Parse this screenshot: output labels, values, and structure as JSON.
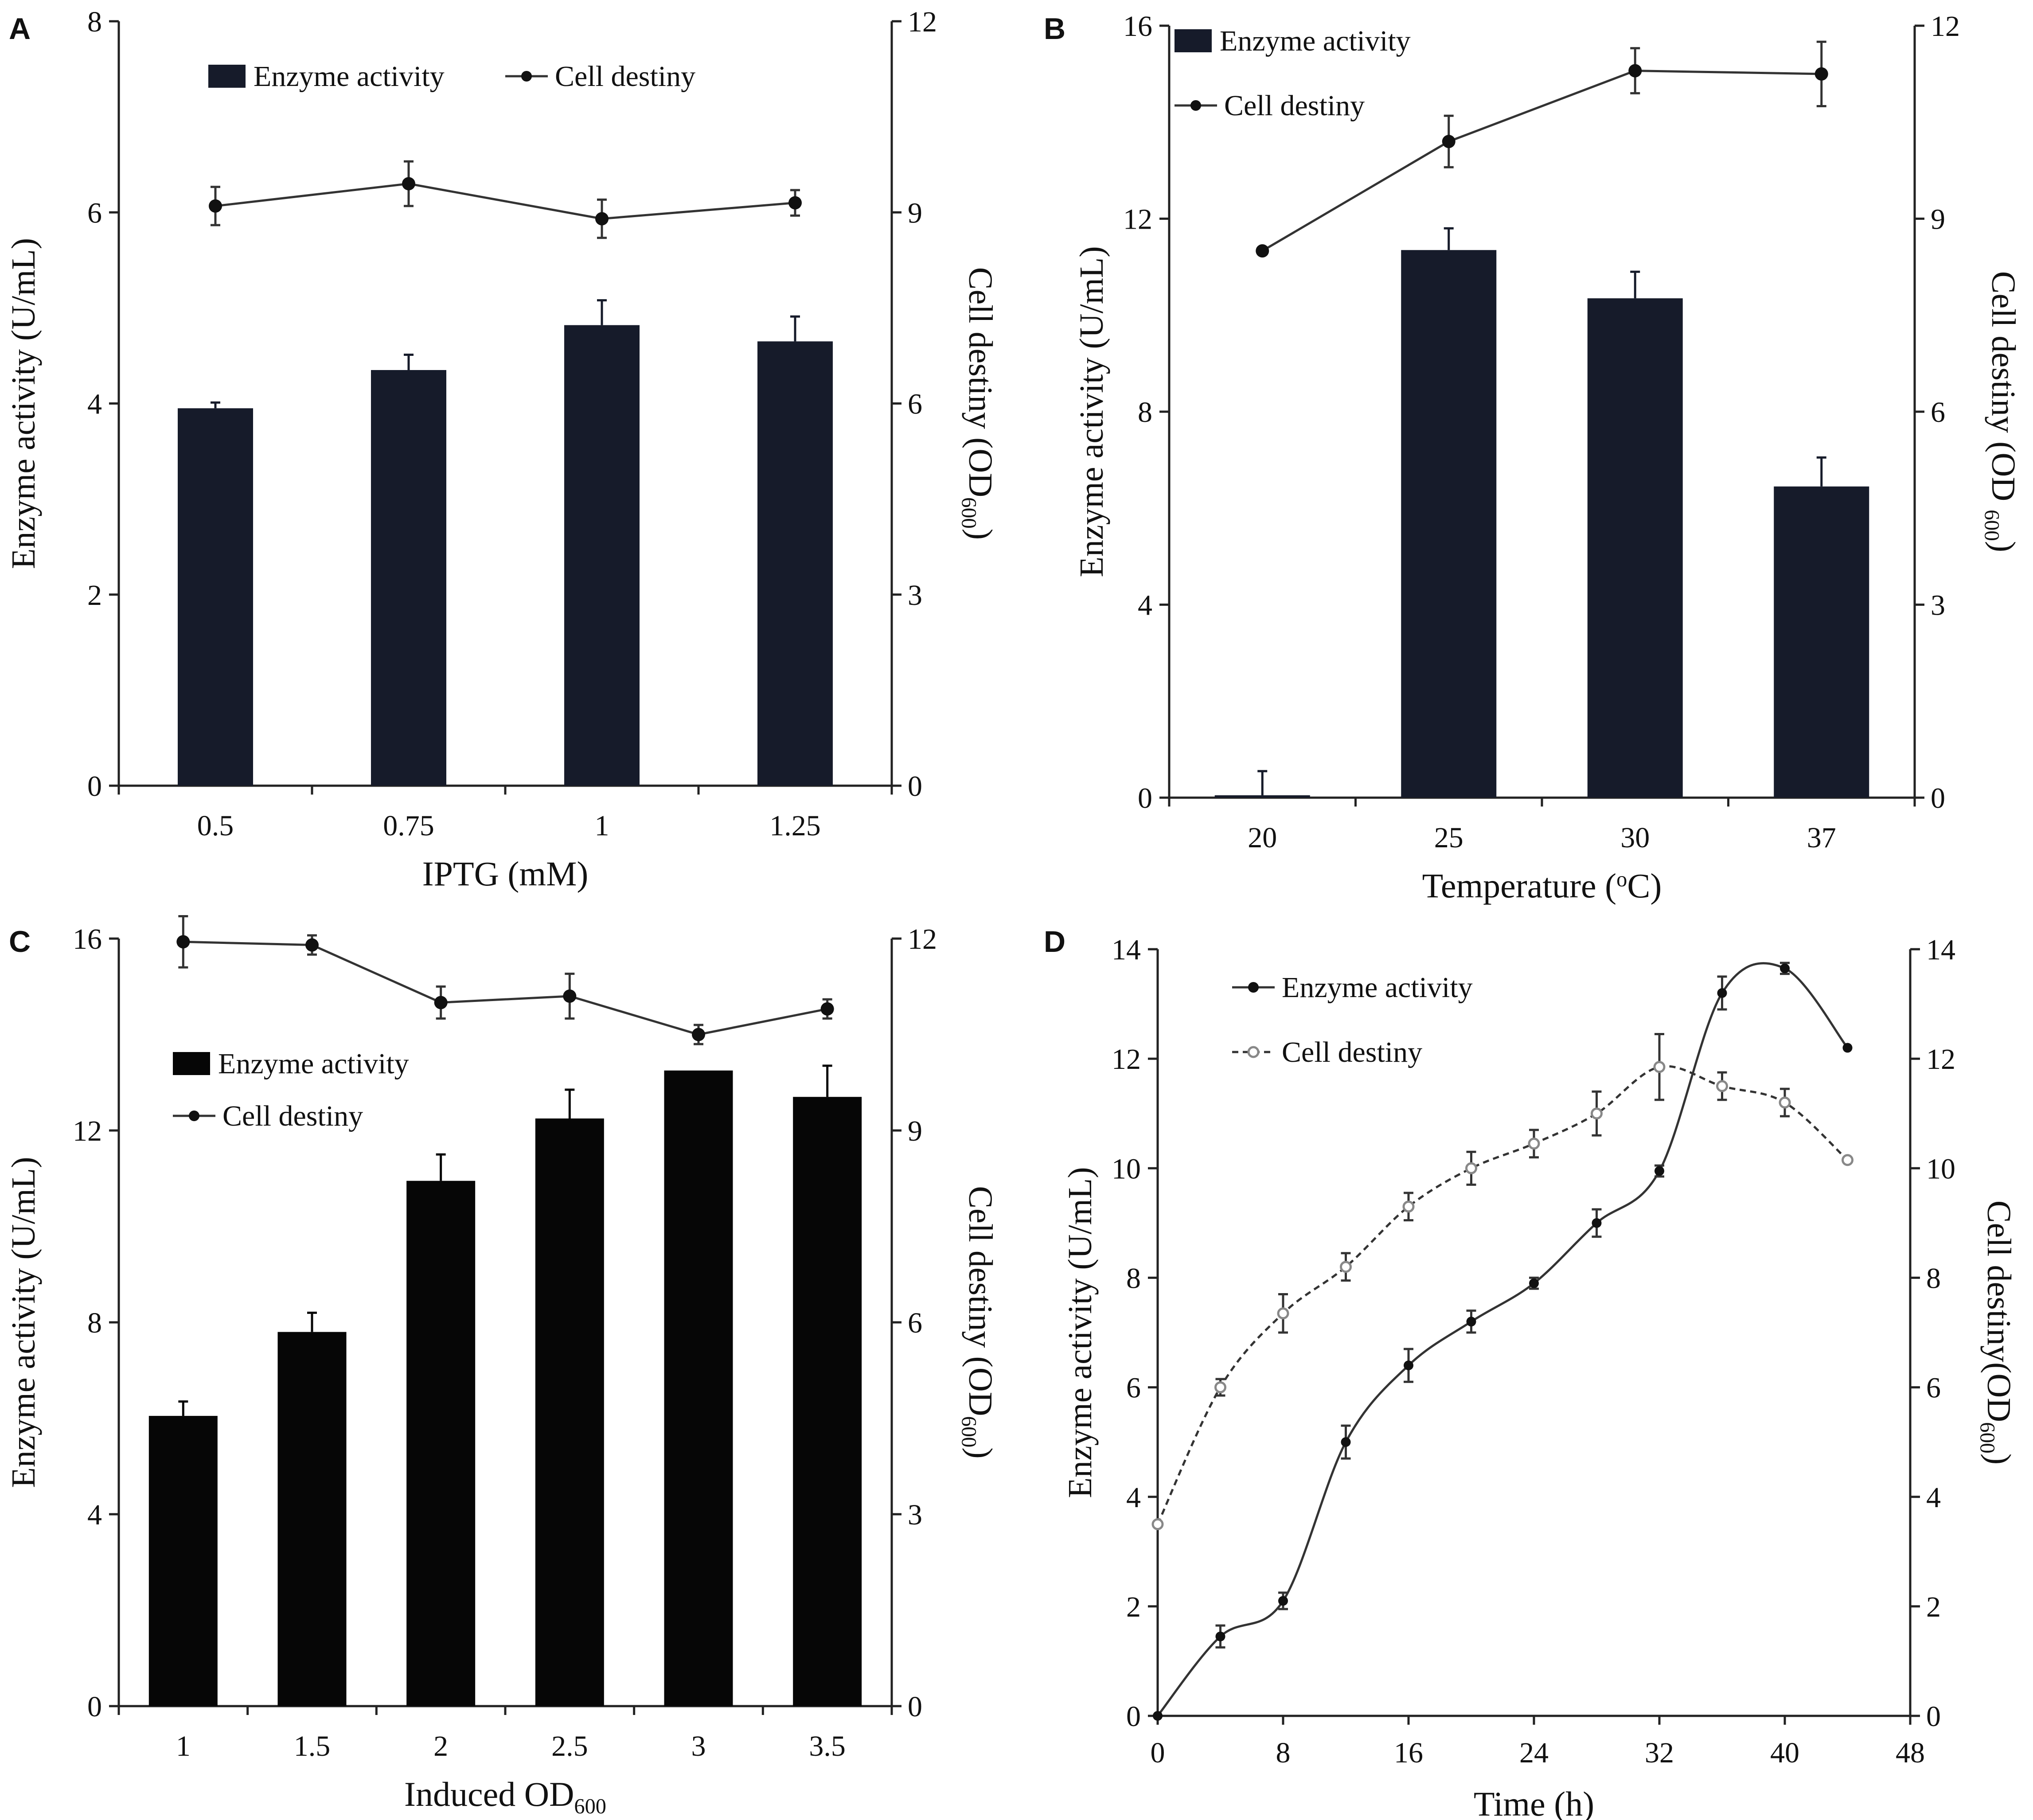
{
  "figure": {
    "colors": {
      "bar": "#161b2a",
      "bar_dark": "#060606",
      "axis": "#222222",
      "line": "#333333",
      "open_marker": "#888888"
    }
  },
  "chart_data": [
    {
      "id": "A",
      "panel_label": "A",
      "type": "bar",
      "title": "",
      "xlabel": {
        "main": "IPTG (mM)"
      },
      "ylabel": "Enzyme activity (U/mL)",
      "y2label": {
        "main": "Cell destiny (OD",
        "sub": "600",
        "tail": ")"
      },
      "categories": [
        "0.5",
        "0.75",
        "1",
        "1.25"
      ],
      "ylim": [
        0,
        8
      ],
      "yticks": [
        "0",
        "2",
        "4",
        "6",
        "8"
      ],
      "y2lim": [
        0,
        12
      ],
      "y2ticks": [
        "0",
        "3",
        "6",
        "9",
        "12"
      ],
      "legend_position": "top",
      "series": [
        {
          "name": "Enzyme activity",
          "kind": "bar",
          "axis": "left",
          "values": [
            3.95,
            4.35,
            4.82,
            4.65
          ],
          "errors": [
            0.06,
            0.16,
            0.26,
            0.26
          ]
        },
        {
          "name": "Cell destiny",
          "kind": "line",
          "axis": "right",
          "values": [
            9.1,
            9.45,
            8.9,
            9.15
          ],
          "errors": [
            0.3,
            0.35,
            0.3,
            0.2
          ]
        }
      ]
    },
    {
      "id": "B",
      "panel_label": "B",
      "type": "bar",
      "title": "",
      "xlabel": {
        "main": "Temperature (",
        "sup": "o",
        "tail": "C)"
      },
      "ylabel": "Enzyme activity (U/mL)",
      "y2label": {
        "main": "Cell destiny (OD ",
        "sub": "600",
        "tail": ")"
      },
      "categories": [
        "20",
        "25",
        "30",
        "37"
      ],
      "ylim": [
        0,
        16
      ],
      "yticks": [
        "0",
        "4",
        "8",
        "12",
        "16"
      ],
      "y2lim": [
        0,
        12
      ],
      "y2ticks": [
        "0",
        "3",
        "6",
        "9",
        "12"
      ],
      "legend_position": "top-left",
      "series": [
        {
          "name": "Enzyme activity",
          "kind": "bar",
          "axis": "left",
          "values": [
            0.05,
            11.35,
            10.35,
            6.45
          ],
          "errors": [
            0.5,
            0.45,
            0.55,
            0.6
          ]
        },
        {
          "name": "Cell destiny",
          "kind": "line",
          "axis": "right",
          "values": [
            8.5,
            10.2,
            11.3,
            11.25
          ],
          "errors": [
            0.0,
            0.4,
            0.35,
            0.5
          ]
        }
      ]
    },
    {
      "id": "C",
      "panel_label": "C",
      "type": "bar",
      "title": "",
      "xlabel": {
        "main": "Induced OD",
        "sub": "600",
        "tail": ""
      },
      "ylabel": "Enzyme activity (U/mL)",
      "y2label": {
        "main": "Cell destiny (OD",
        "sub": "600",
        "tail": ")"
      },
      "categories": [
        "1",
        "1.5",
        "2",
        "2.5",
        "3",
        "3.5"
      ],
      "ylim": [
        0,
        16
      ],
      "yticks": [
        "0",
        "4",
        "8",
        "12",
        "16"
      ],
      "y2lim": [
        0,
        12
      ],
      "y2ticks": [
        "0",
        "3",
        "6",
        "9",
        "12"
      ],
      "legend_position": "middle-left",
      "series": [
        {
          "name": "Enzyme activity",
          "kind": "bar",
          "axis": "left",
          "values": [
            6.05,
            7.8,
            10.95,
            12.25,
            13.25,
            12.7
          ],
          "errors": [
            0.3,
            0.4,
            0.55,
            0.6,
            0.0,
            0.65
          ]
        },
        {
          "name": "Cell destiny",
          "kind": "line",
          "axis": "right",
          "values": [
            11.95,
            11.9,
            11.0,
            11.1,
            10.5,
            10.9
          ],
          "errors": [
            0.4,
            0.15,
            0.25,
            0.35,
            0.15,
            0.15
          ]
        }
      ]
    },
    {
      "id": "D",
      "panel_label": "D",
      "type": "line",
      "title": "",
      "xlabel": {
        "main": "Time (h)"
      },
      "ylabel": "Enzyme activity (U/mL)",
      "y2label": {
        "main": "Cell destiny(OD",
        "sub": "600",
        "tail": ")"
      },
      "x": [
        0,
        4,
        8,
        12,
        16,
        20,
        24,
        28,
        32,
        36,
        40,
        44
      ],
      "xlim": [
        0,
        48
      ],
      "xticks": [
        "0",
        "8",
        "16",
        "24",
        "32",
        "40",
        "48"
      ],
      "ylim": [
        0,
        14
      ],
      "yticks": [
        "0",
        "2",
        "4",
        "6",
        "8",
        "10",
        "12",
        "14"
      ],
      "y2lim": [
        0,
        14
      ],
      "y2ticks": [
        "0",
        "2",
        "4",
        "6",
        "8",
        "10",
        "12",
        "14"
      ],
      "legend_position": "top-left",
      "series": [
        {
          "name": "Enzyme activity",
          "kind": "line-smooth",
          "marker": "filled",
          "axis": "left",
          "values": [
            0.0,
            1.45,
            2.1,
            5.0,
            6.4,
            7.2,
            7.9,
            9.0,
            9.95,
            13.2,
            13.65,
            12.2
          ],
          "errors": [
            0.0,
            0.2,
            0.15,
            0.3,
            0.3,
            0.2,
            0.1,
            0.25,
            0.1,
            0.3,
            0.1,
            0.0
          ]
        },
        {
          "name": "Cell destiny",
          "kind": "line-dashed",
          "marker": "open",
          "axis": "right",
          "values": [
            3.5,
            6.0,
            7.35,
            8.2,
            9.3,
            10.0,
            10.45,
            11.0,
            11.85,
            11.5,
            11.2,
            10.15
          ],
          "errors": [
            0.0,
            0.15,
            0.35,
            0.25,
            0.25,
            0.3,
            0.25,
            0.4,
            0.6,
            0.25,
            0.25,
            0.0
          ]
        }
      ]
    }
  ]
}
